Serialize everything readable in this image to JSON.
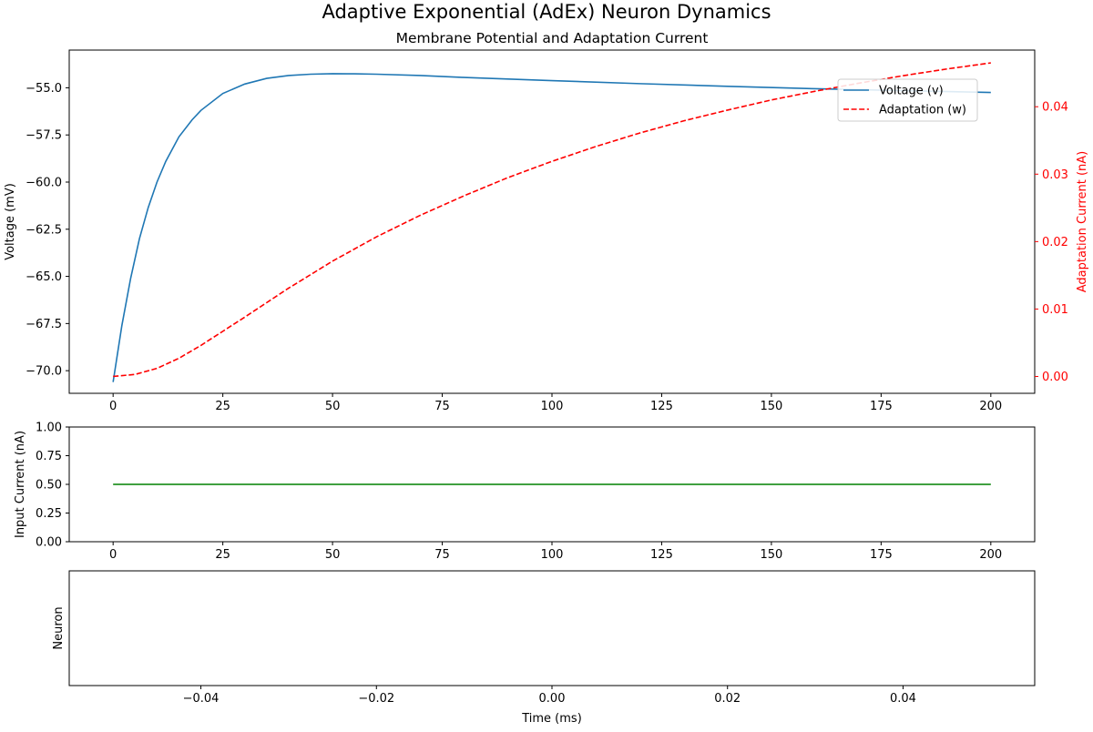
{
  "figure": {
    "suptitle": "Adaptive Exponential (AdEx) Neuron Dynamics"
  },
  "chart_data": [
    {
      "type": "line",
      "title": "Membrane Potential and Adaptation Current",
      "xlabel": "",
      "ylabel": "Voltage (mV)",
      "ylabel_right": "Adaptation Current (nA)",
      "xlim": [
        -10,
        210
      ],
      "ylim": [
        -71.2,
        -53.0
      ],
      "ylim_right": [
        -0.0025,
        0.0484
      ],
      "x_ticks": [
        0,
        25,
        50,
        75,
        100,
        125,
        150,
        175,
        200
      ],
      "y_ticks": [
        -70.0,
        -67.5,
        -65.0,
        -62.5,
        -60.0,
        -57.5,
        -55.0
      ],
      "y_ticks_right": [
        0.0,
        0.01,
        0.02,
        0.03,
        0.04
      ],
      "grid": false,
      "legend_position": "upper right",
      "series": [
        {
          "name": "Voltage (v)",
          "axis": "left",
          "color": "#1f77b4",
          "dash": "solid",
          "x": [
            0,
            2,
            4,
            6,
            8,
            10,
            12,
            15,
            18,
            20,
            25,
            30,
            35,
            40,
            45,
            50,
            55,
            60,
            70,
            80,
            100,
            120,
            140,
            160,
            180,
            200
          ],
          "y": [
            -70.6,
            -67.6,
            -65.1,
            -63.0,
            -61.35,
            -60.0,
            -58.9,
            -57.6,
            -56.7,
            -56.2,
            -55.3,
            -54.8,
            -54.5,
            -54.35,
            -54.28,
            -54.25,
            -54.26,
            -54.28,
            -54.35,
            -54.45,
            -54.62,
            -54.78,
            -54.92,
            -55.05,
            -55.15,
            -55.25
          ]
        },
        {
          "name": "Adaptation (w)",
          "axis": "right",
          "color": "#ff0000",
          "dash": "dashed",
          "x": [
            0,
            5,
            10,
            15,
            20,
            25,
            30,
            40,
            50,
            60,
            70,
            80,
            90,
            100,
            110,
            120,
            130,
            140,
            150,
            160,
            170,
            180,
            190,
            200
          ],
          "y": [
            0.0,
            0.0003,
            0.0012,
            0.0027,
            0.0046,
            0.0067,
            0.0088,
            0.0131,
            0.0171,
            0.0207,
            0.0239,
            0.0268,
            0.0295,
            0.0319,
            0.0341,
            0.0361,
            0.0379,
            0.0395,
            0.041,
            0.0423,
            0.0435,
            0.0446,
            0.0456,
            0.0465
          ]
        }
      ]
    },
    {
      "type": "line",
      "title": "",
      "xlabel": "",
      "ylabel": "Input Current (nA)",
      "xlim": [
        -10,
        210
      ],
      "ylim": [
        0.0,
        1.0
      ],
      "x_ticks": [
        0,
        25,
        50,
        75,
        100,
        125,
        150,
        175,
        200
      ],
      "y_ticks": [
        0.0,
        0.25,
        0.5,
        0.75,
        1.0
      ],
      "y_tick_labels": [
        "0.00",
        "0.25",
        "0.50",
        "0.75",
        "1.00"
      ],
      "grid": false,
      "series": [
        {
          "axis": "left",
          "color": "#008000",
          "dash": "solid",
          "x": [
            0,
            200
          ],
          "y": [
            0.5,
            0.5
          ]
        }
      ]
    },
    {
      "type": "scatter",
      "title": "",
      "xlabel": "Time (ms)",
      "ylabel": "Neuron",
      "xlim": [
        -0.055,
        0.055
      ],
      "x_ticks": [
        -0.04,
        -0.02,
        0.0,
        0.02,
        0.04
      ],
      "x_tick_labels": [
        "−0.04",
        "−0.02",
        "0.00",
        "0.02",
        "0.04"
      ],
      "y_ticks": [],
      "grid": false,
      "series": []
    }
  ]
}
